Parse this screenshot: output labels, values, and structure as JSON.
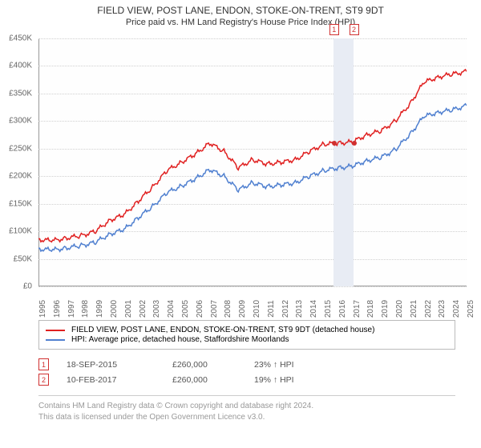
{
  "title": "FIELD VIEW, POST LANE, ENDON, STOKE-ON-TRENT, ST9 9DT",
  "subtitle": "Price paid vs. HM Land Registry's House Price Index (HPI)",
  "chart": {
    "type": "line",
    "background_color": "#ffffff",
    "grid_color": "#d0d0d0",
    "axis_color": "#999999",
    "xlim": [
      1995,
      2025
    ],
    "ylim": [
      0,
      450000
    ],
    "ytick_step": 50000,
    "yticks": [
      "£0",
      "£50K",
      "£100K",
      "£150K",
      "£200K",
      "£250K",
      "£300K",
      "£350K",
      "£400K",
      "£450K"
    ],
    "xticks": [
      "1995",
      "1996",
      "1997",
      "1998",
      "1999",
      "2000",
      "2001",
      "2002",
      "2003",
      "2004",
      "2005",
      "2006",
      "2007",
      "2008",
      "2009",
      "2010",
      "2011",
      "2012",
      "2013",
      "2014",
      "2015",
      "2016",
      "2017",
      "2018",
      "2019",
      "2020",
      "2021",
      "2022",
      "2023",
      "2024",
      "2025"
    ],
    "label_fontsize": 10,
    "title_fontsize": 12,
    "series": [
      {
        "name": "property",
        "label": "FIELD VIEW, POST LANE, ENDON, STOKE-ON-TRENT, ST9 9DT (detached house)",
        "color": "#e02020",
        "line_width": 1.5,
        "points": [
          [
            1995,
            85000
          ],
          [
            1996,
            83000
          ],
          [
            1997,
            88000
          ],
          [
            1998,
            92000
          ],
          [
            1999,
            100000
          ],
          [
            2000,
            120000
          ],
          [
            2001,
            130000
          ],
          [
            2002,
            155000
          ],
          [
            2003,
            180000
          ],
          [
            2004,
            210000
          ],
          [
            2005,
            225000
          ],
          [
            2006,
            240000
          ],
          [
            2007,
            260000
          ],
          [
            2008,
            245000
          ],
          [
            2009,
            215000
          ],
          [
            2010,
            230000
          ],
          [
            2011,
            222000
          ],
          [
            2012,
            225000
          ],
          [
            2013,
            230000
          ],
          [
            2014,
            245000
          ],
          [
            2015,
            258000
          ],
          [
            2016,
            260000
          ],
          [
            2017,
            262000
          ],
          [
            2018,
            275000
          ],
          [
            2019,
            282000
          ],
          [
            2020,
            300000
          ],
          [
            2021,
            330000
          ],
          [
            2022,
            370000
          ],
          [
            2023,
            380000
          ],
          [
            2024,
            385000
          ],
          [
            2025,
            390000
          ]
        ]
      },
      {
        "name": "hpi",
        "label": "HPI: Average price, detached house, Staffordshire Moorlands",
        "color": "#5080d0",
        "line_width": 1.5,
        "points": [
          [
            1995,
            68000
          ],
          [
            1996,
            66000
          ],
          [
            1997,
            70000
          ],
          [
            1998,
            74000
          ],
          [
            1999,
            80000
          ],
          [
            2000,
            95000
          ],
          [
            2001,
            103000
          ],
          [
            2002,
            125000
          ],
          [
            2003,
            145000
          ],
          [
            2004,
            170000
          ],
          [
            2005,
            182000
          ],
          [
            2006,
            195000
          ],
          [
            2007,
            212000
          ],
          [
            2008,
            200000
          ],
          [
            2009,
            175000
          ],
          [
            2010,
            188000
          ],
          [
            2011,
            181000
          ],
          [
            2012,
            184000
          ],
          [
            2013,
            188000
          ],
          [
            2014,
            200000
          ],
          [
            2015,
            210000
          ],
          [
            2016,
            215000
          ],
          [
            2017,
            218000
          ],
          [
            2018,
            228000
          ],
          [
            2019,
            234000
          ],
          [
            2020,
            248000
          ],
          [
            2021,
            275000
          ],
          [
            2022,
            308000
          ],
          [
            2023,
            316000
          ],
          [
            2024,
            320000
          ],
          [
            2025,
            328000
          ]
        ]
      }
    ],
    "marker_band": {
      "start": 2015.7,
      "end": 2017.1,
      "color": "#e8ecf4"
    },
    "event_markers": [
      {
        "n": "1",
        "x": 2015.72,
        "y": 260000,
        "color": "#d03030"
      },
      {
        "n": "2",
        "x": 2017.11,
        "y": 260000,
        "color": "#d03030"
      }
    ]
  },
  "legend": {
    "items": [
      {
        "color": "#e02020",
        "label": "FIELD VIEW, POST LANE, ENDON, STOKE-ON-TRENT, ST9 9DT (detached house)"
      },
      {
        "color": "#5080d0",
        "label": "HPI: Average price, detached house, Staffordshire Moorlands"
      }
    ]
  },
  "marker_rows": [
    {
      "n": "1",
      "date": "18-SEP-2015",
      "price": "£260,000",
      "pct": "23% ↑ HPI",
      "color": "#d03030"
    },
    {
      "n": "2",
      "date": "10-FEB-2017",
      "price": "£260,000",
      "pct": "19% ↑ HPI",
      "color": "#d03030"
    }
  ],
  "footer": {
    "line1": "Contains HM Land Registry data © Crown copyright and database right 2024.",
    "line2": "This data is licensed under the Open Government Licence v3.0."
  }
}
